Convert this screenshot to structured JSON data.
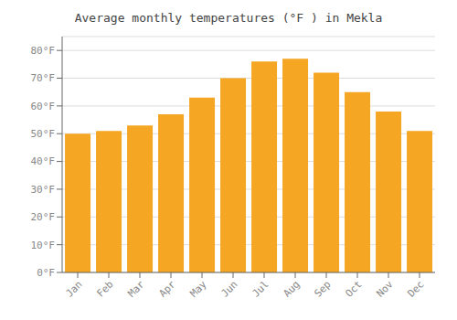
{
  "chart_data": {
    "type": "bar",
    "title": "Average monthly temperatures (°F ) in Mekla",
    "categories": [
      "Jan",
      "Feb",
      "Mar",
      "Apr",
      "May",
      "Jun",
      "Jul",
      "Aug",
      "Sep",
      "Oct",
      "Nov",
      "Dec"
    ],
    "values": [
      50,
      51,
      53,
      57,
      63,
      70,
      76,
      77,
      72,
      65,
      58,
      51
    ],
    "color": "#F5A623",
    "ylim": [
      0,
      85
    ],
    "yticks": [
      {
        "value": 0,
        "label": "0°F"
      },
      {
        "value": 10,
        "label": "10°F"
      },
      {
        "value": 20,
        "label": "20°F"
      },
      {
        "value": 30,
        "label": "30°F"
      },
      {
        "value": 40,
        "label": "40°F"
      },
      {
        "value": 50,
        "label": "50°F"
      },
      {
        "value": 60,
        "label": "60°F"
      },
      {
        "value": 70,
        "label": "70°F"
      },
      {
        "value": 80,
        "label": "80°F"
      }
    ],
    "grid": true
  }
}
